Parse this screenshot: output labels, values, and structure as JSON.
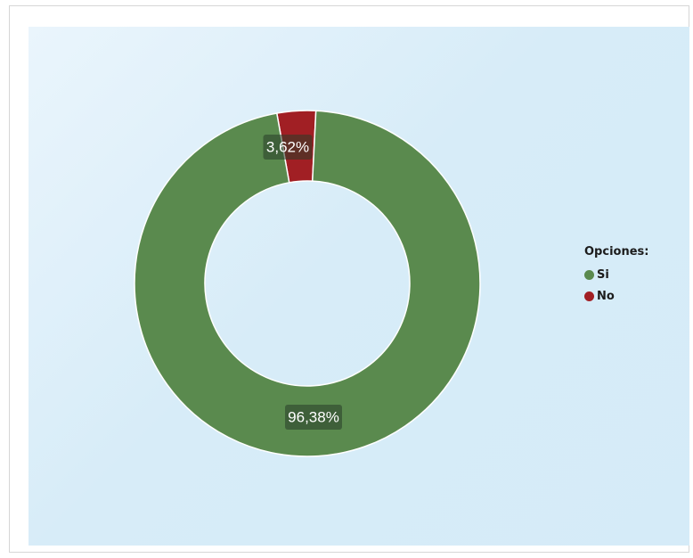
{
  "chart_data": {
    "type": "pie",
    "donut": true,
    "title": "",
    "legend": {
      "title": "Opciones:",
      "placement": "right"
    },
    "slices": [
      {
        "label": "Si",
        "value": 96.38,
        "display": "96,38%",
        "color": "#5a8a4e"
      },
      {
        "label": "No",
        "value": 3.62,
        "display": "3,62%",
        "color": "#a11f24"
      }
    ]
  }
}
